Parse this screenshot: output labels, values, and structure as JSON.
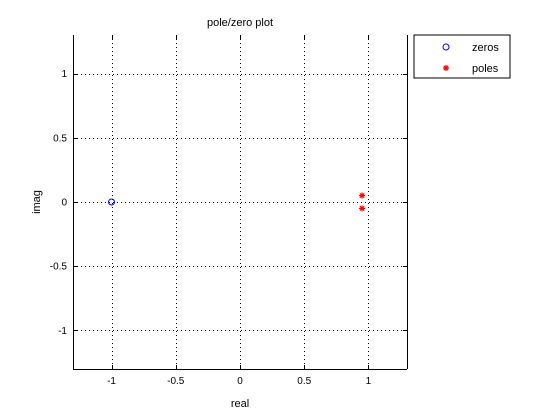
{
  "chart_data": {
    "type": "scatter",
    "title": "pole/zero plot",
    "xlabel": "real",
    "ylabel": "imag",
    "xlim": [
      -1.3,
      1.3
    ],
    "ylim": [
      -1.3,
      1.3
    ],
    "xticks": [
      -1,
      -0.5,
      0,
      0.5,
      1
    ],
    "xtick_labels": [
      "-1",
      "-0.5",
      "0",
      "0.5",
      "1"
    ],
    "yticks": [
      -1,
      -0.5,
      0,
      0.5,
      1
    ],
    "ytick_labels": [
      "-1",
      "-0.5",
      "0",
      "0.5",
      "1"
    ],
    "grid": true,
    "grid_style": "dotted",
    "legend_position": "outside-top-right",
    "series": [
      {
        "name": "zeros",
        "marker": "circle",
        "color": "#0000ff",
        "points": [
          {
            "x": -1,
            "y": 0
          }
        ]
      },
      {
        "name": "poles",
        "marker": "asterisk",
        "color": "#ff0000",
        "points": [
          {
            "x": 0.95,
            "y": 0.05
          },
          {
            "x": 0.95,
            "y": -0.05
          }
        ]
      }
    ]
  }
}
